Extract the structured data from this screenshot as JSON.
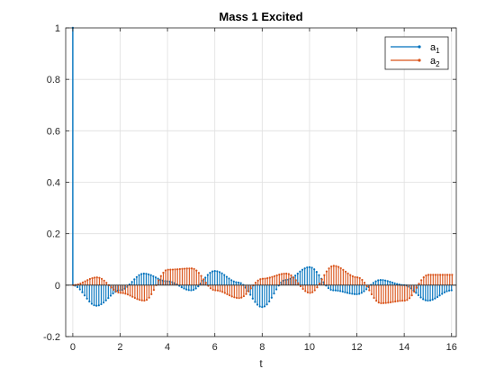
{
  "chart_data": {
    "type": "stem",
    "title": "Mass 1 Excited",
    "xlabel": "t",
    "ylabel": "",
    "xlim": [
      -0.3,
      16.2
    ],
    "ylim": [
      -0.2,
      1
    ],
    "xticks": [
      0,
      2,
      4,
      6,
      8,
      10,
      12,
      14,
      16
    ],
    "yticks": [
      -0.2,
      0,
      0.2,
      0.4,
      0.6,
      0.8,
      1
    ],
    "ytick_labels": [
      "-0.2",
      "0",
      "0.2",
      "0.4",
      "0.6",
      "0.8",
      "1"
    ],
    "grid": true,
    "legend_position": "top-right",
    "series": [
      {
        "name": "a1",
        "legend_base": "a",
        "legend_sub": "1",
        "color": "#0072BD",
        "initial_value": 1,
        "envelope": {
          "t": [
            0,
            1,
            2,
            3,
            4,
            5,
            6,
            7,
            8,
            9,
            10,
            11,
            12,
            13,
            14,
            15,
            16
          ],
          "y": [
            0,
            -0.08,
            -0.02,
            0.045,
            0.015,
            -0.02,
            0.055,
            0.01,
            -0.085,
            0.02,
            0.07,
            -0.02,
            -0.035,
            0.02,
            0.0,
            -0.06,
            -0.02
          ]
        }
      },
      {
        "name": "a2",
        "legend_base": "a",
        "legend_sub": "2",
        "color": "#D95319",
        "envelope": {
          "t": [
            0,
            1,
            2,
            3,
            4,
            5,
            6,
            7,
            8,
            9,
            10,
            11,
            12,
            13,
            14,
            15,
            16
          ],
          "y": [
            0,
            0.03,
            -0.03,
            -0.06,
            0.06,
            0.065,
            -0.02,
            -0.05,
            0.025,
            0.045,
            -0.03,
            0.075,
            0.03,
            -0.07,
            -0.06,
            0.04,
            0.04
          ]
        }
      }
    ],
    "sample_step": 0.1
  }
}
